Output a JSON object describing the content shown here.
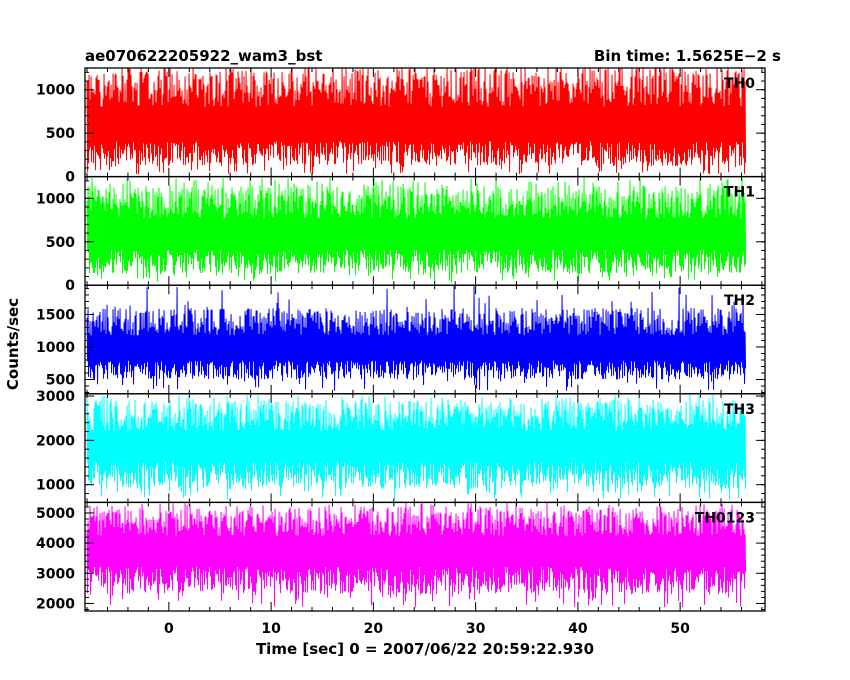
{
  "header": {
    "title": "ae070622205922_wam3_bst",
    "bin_time": "Bin time: 1.5625E−2 s"
  },
  "axes": {
    "xlabel": "Time [sec] 0 = 2007/06/22 20:59:22.930",
    "ylabel": "Counts/sec"
  },
  "chart_data": {
    "type": "line",
    "x_axis": {
      "range": [
        -8.2,
        58.3
      ],
      "ticks": [
        0,
        10,
        20,
        30,
        40,
        50
      ],
      "minor_step": 2
    },
    "x_data_range": [
      -8.0,
      56.4
    ],
    "bin_time": 0.015625,
    "panels": [
      {
        "name": "TH0",
        "color": "#ff0000",
        "ylim": [
          0,
          1250
        ],
        "ticks": [
          0,
          500,
          1000
        ],
        "minor_step": 100,
        "mean": 560,
        "lower_envelope": 120,
        "upper_envelope": 1250
      },
      {
        "name": "TH1",
        "color": "#00ff00",
        "ylim": [
          0,
          1250
        ],
        "ticks": [
          0,
          500,
          1000
        ],
        "minor_step": 100,
        "mean": 560,
        "lower_envelope": 130,
        "upper_envelope": 1150
      },
      {
        "name": "TH2",
        "color": "#0000ff",
        "ylim": [
          280,
          1950
        ],
        "ticks": [
          500,
          1000,
          1500
        ],
        "minor_step": 100,
        "mean": 950,
        "lower_envelope": 500,
        "upper_envelope": 1600
      },
      {
        "name": "TH3",
        "color": "#00ffff",
        "ylim": [
          600,
          3050
        ],
        "ticks": [
          1000,
          2000,
          3000
        ],
        "minor_step": 200,
        "mean": 1850,
        "lower_envelope": 900,
        "upper_envelope": 2900
      },
      {
        "name": "TH0123",
        "color": "#ff00ff",
        "ylim": [
          1750,
          5350
        ],
        "ticks": [
          2000,
          3000,
          4000,
          5000
        ],
        "minor_step": 200,
        "mean": 3700,
        "lower_envelope": 2300,
        "upper_envelope": 5200
      }
    ]
  }
}
